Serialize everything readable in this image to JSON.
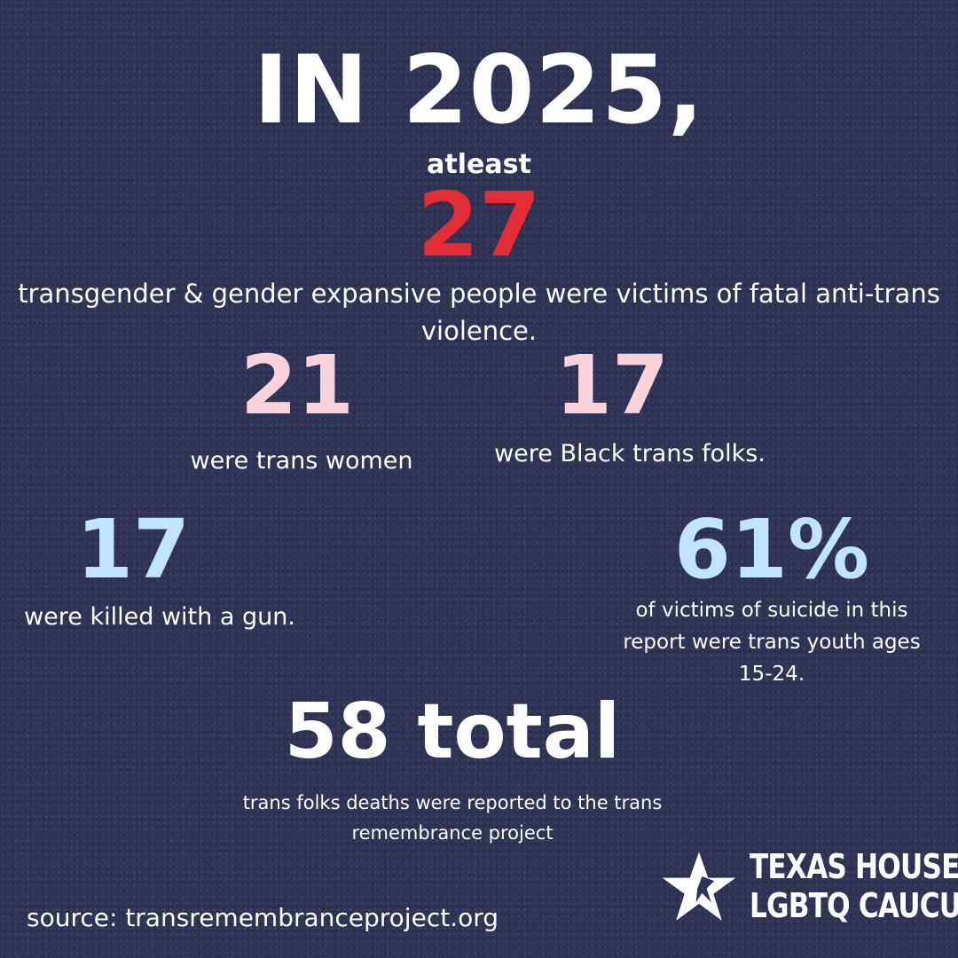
{
  "headline": "IN 2025,",
  "atleast": "atleast",
  "main_stat": {
    "value": "27",
    "description": "transgender & gender expansive people were victims of fatal anti-trans violence."
  },
  "stats": [
    {
      "value": "21",
      "label": "were trans women",
      "color": "#f8d3dc"
    },
    {
      "value": "17",
      "label": "were Black trans folks.",
      "color": "#f8d3dc"
    },
    {
      "value": "17",
      "label": "were killed with a gun.",
      "color": "#bfe4fb"
    },
    {
      "value": "61%",
      "label": "of victims of suicide in this report were trans youth ages 15-24.",
      "color": "#bfe4fb"
    }
  ],
  "total": {
    "value": "58 total",
    "label": "trans folks deaths were reported to the trans remembrance project"
  },
  "source": "source: transremembranceproject.org",
  "logo": {
    "icon": "star-icon",
    "line1": "TEXAS HOUSE",
    "line2": "LGBTQ CAUCUS"
  },
  "colors": {
    "background": "#2f3354",
    "accent_red": "#e32d35",
    "pink": "#f8d3dc",
    "light_blue": "#bfe4fb"
  }
}
